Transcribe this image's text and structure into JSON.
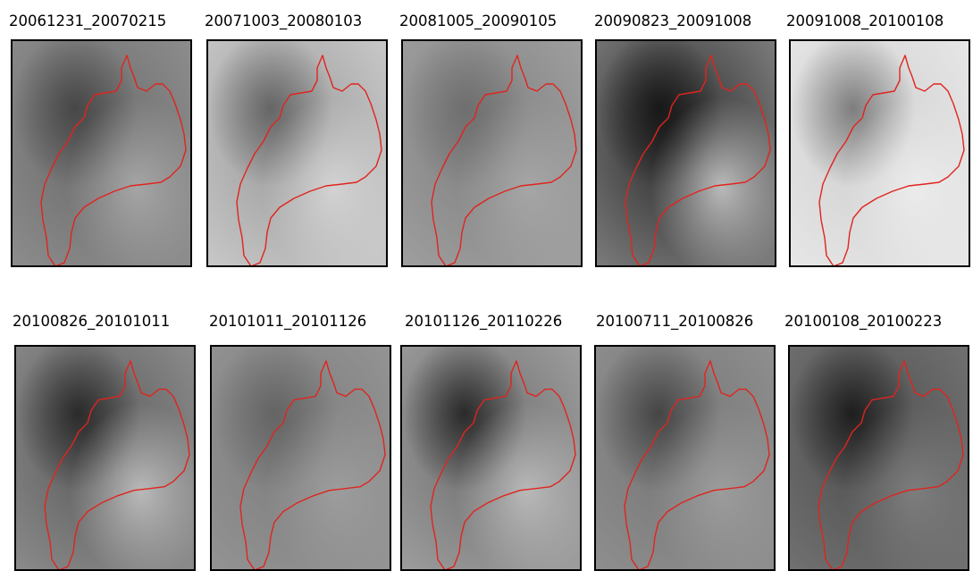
{
  "figure": {
    "rows": [
      {
        "panels": [
          {
            "label": "20061231_20070215",
            "tones": [
              "#8c8c8c",
              "#6a6a6a",
              "#3f3f3f",
              "#b8b8b8"
            ]
          },
          {
            "label": "20071003_20080103",
            "tones": [
              "#c7c7c7",
              "#9a9a9a",
              "#5a5a5a",
              "#e2e2e2"
            ]
          },
          {
            "label": "20081005_20090105",
            "tones": [
              "#9e9e9e",
              "#808080",
              "#6a6a6a",
              "#b0b0b0"
            ]
          },
          {
            "label": "20090823_20091008",
            "tones": [
              "#7a7a7a",
              "#2a2a2a",
              "#111111",
              "#e8e8e8"
            ]
          },
          {
            "label": "20091008_20100108",
            "tones": [
              "#e6e6e6",
              "#cfcfcf",
              "#6e6e6e",
              "#f3f3f3"
            ]
          }
        ]
      },
      {
        "panels": [
          {
            "label": "20100826_20101011",
            "tones": [
              "#8a8a8a",
              "#5a5a5a",
              "#202020",
              "#d8d8d8"
            ]
          },
          {
            "label": "20101011_20101126",
            "tones": [
              "#939393",
              "#7c7c7c",
              "#5f5f5f",
              "#a6a6a6"
            ]
          },
          {
            "label": "20101126_20110226",
            "tones": [
              "#9c9c9c",
              "#6e6e6e",
              "#1c1c1c",
              "#cfcfcf"
            ]
          },
          {
            "label": "20100711_20100826",
            "tones": [
              "#8e8e8e",
              "#757575",
              "#3c3c3c",
              "#a8a8a8"
            ]
          },
          {
            "label": "20100108_20100223",
            "tones": [
              "#707070",
              "#4f4f4f",
              "#141414",
              "#8a8a8a"
            ]
          }
        ]
      }
    ],
    "outline_color": "#e0241e"
  }
}
